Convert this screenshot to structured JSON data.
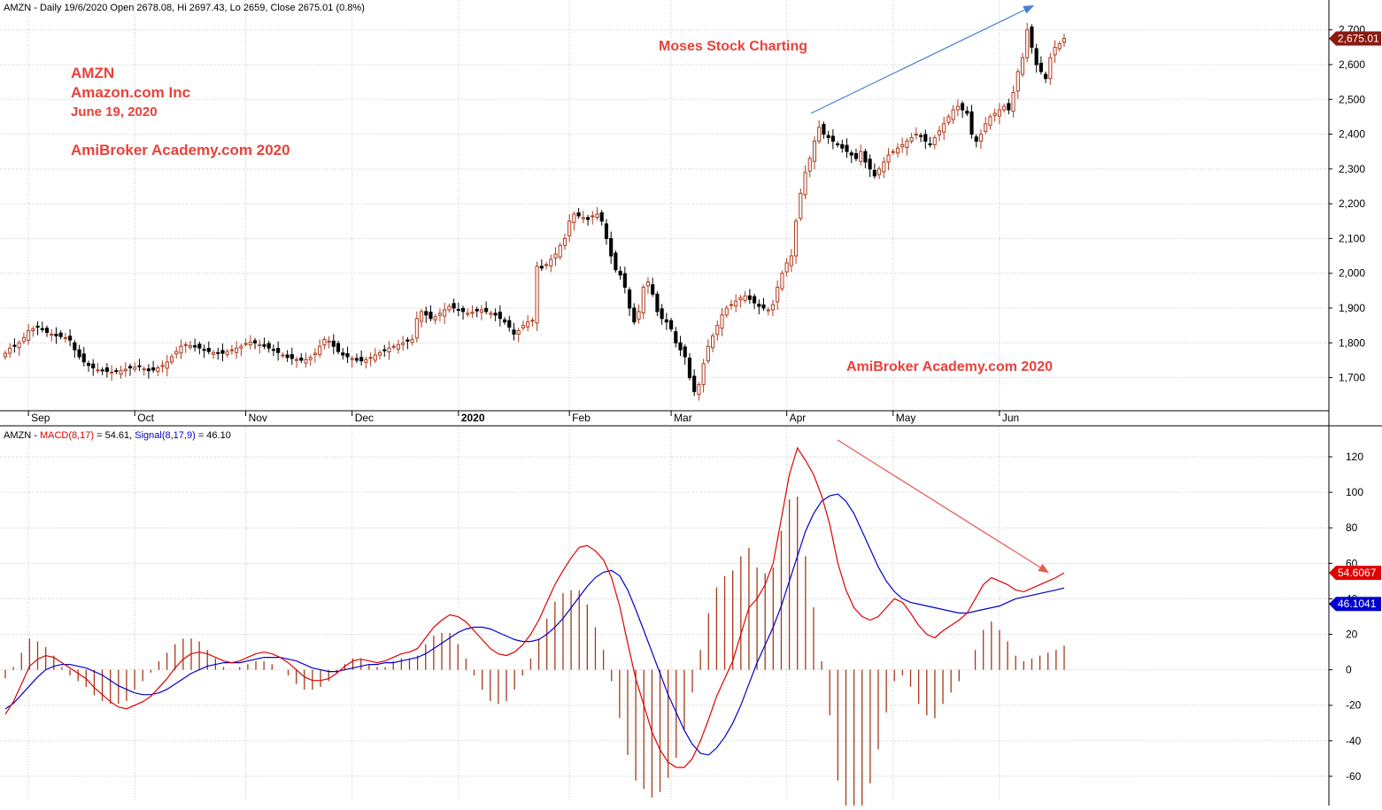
{
  "header": {
    "price_info": "AMZN - Daily 19/6/2020 Open 2678.08, Hi 2697.43, Lo 2659, Close 2675.01 (0.8%)",
    "macd_prefix": "AMZN - ",
    "macd_label": "MACD(8,17)",
    "macd_value_text": " = 54.61, ",
    "signal_label": "Signal(8,17,9)",
    "signal_value_text": " = 46.10"
  },
  "annotations": {
    "ticker": "AMZN",
    "company": "Amazon.com Inc",
    "date": "June 19, 2020",
    "site_left": "AmiBroker Academy.com 2020",
    "site_top": "Moses Stock Charting",
    "site_bottom": "AmiBroker Academy.com  2020"
  },
  "colors": {
    "up_candle": "#b03a1c",
    "down_candle": "#000000",
    "macd_line": "#e00000",
    "signal_line": "#0000cc",
    "histogram": "#a33a1a",
    "price_tag": "#8b1a10",
    "trend_up_arrow": "#4a7fd0",
    "trend_down_arrow": "#e85a50",
    "annotation_text": "#e8413a"
  },
  "chart_data": [
    {
      "type": "candlestick",
      "title": "AMZN - Daily 19/6/2020",
      "ylim": [
        1620,
        2740
      ],
      "y_ticks": [
        "1,700",
        "1,800",
        "1,900",
        "2,000",
        "2,100",
        "2,200",
        "2,300",
        "2,400",
        "2,500",
        "2,600",
        "2,700"
      ],
      "y_tick_values": [
        1700,
        1800,
        1900,
        2000,
        2100,
        2200,
        2300,
        2400,
        2500,
        2600,
        2700
      ],
      "x_labels": [
        "Sep",
        "Oct",
        "Nov",
        "Dec",
        "2020",
        "Feb",
        "Mar",
        "Apr",
        "May",
        "Jun"
      ],
      "x_label_bar_index": [
        5,
        28,
        52,
        75,
        98,
        122,
        144,
        169,
        192,
        215
      ],
      "last_close_label": "2,675.01",
      "last_close": 2675.01,
      "close_path": [
        1770,
        1785,
        1790,
        1800,
        1815,
        1835,
        1840,
        1845,
        1838,
        1830,
        1825,
        1820,
        1818,
        1815,
        1808,
        1780,
        1760,
        1745,
        1735,
        1728,
        1722,
        1720,
        1718,
        1716,
        1718,
        1720,
        1724,
        1728,
        1730,
        1732,
        1725,
        1720,
        1722,
        1728,
        1735,
        1745,
        1760,
        1775,
        1790,
        1795,
        1792,
        1788,
        1785,
        1780,
        1775,
        1772,
        1770,
        1770,
        1775,
        1780,
        1785,
        1790,
        1798,
        1802,
        1800,
        1795,
        1790,
        1785,
        1780,
        1772,
        1765,
        1758,
        1755,
        1752,
        1750,
        1752,
        1758,
        1770,
        1790,
        1810,
        1805,
        1790,
        1775,
        1765,
        1760,
        1755,
        1750,
        1748,
        1752,
        1758,
        1765,
        1772,
        1778,
        1785,
        1790,
        1795,
        1800,
        1805,
        1810,
        1870,
        1890,
        1880,
        1870,
        1875,
        1885,
        1895,
        1905,
        1900,
        1895,
        1890,
        1885,
        1888,
        1892,
        1895,
        1890,
        1885,
        1880,
        1870,
        1860,
        1845,
        1825,
        1835,
        1850,
        1860,
        1865,
        2020,
        2015,
        2025,
        2040,
        2055,
        2080,
        2100,
        2150,
        2170,
        2165,
        2160,
        2155,
        2165,
        2170,
        2150,
        2100,
        2050,
        2010,
        1995,
        1960,
        1900,
        1860,
        1890,
        1960,
        1975,
        1940,
        1890,
        1870,
        1860,
        1840,
        1800,
        1780,
        1760,
        1700,
        1660,
        1680,
        1740,
        1790,
        1820,
        1850,
        1880,
        1900,
        1910,
        1920,
        1930,
        1935,
        1925,
        1915,
        1905,
        1900,
        1895,
        1910,
        1960,
        2000,
        2030,
        2050,
        2150,
        2230,
        2290,
        2330,
        2380,
        2420,
        2400,
        2390,
        2380,
        2370,
        2360,
        2350,
        2340,
        2330,
        2350,
        2320,
        2300,
        2280,
        2300,
        2320,
        2340,
        2350,
        2360,
        2370,
        2380,
        2390,
        2400,
        2395,
        2380,
        2370,
        2390,
        2410,
        2430,
        2450,
        2470,
        2480,
        2470,
        2460,
        2400,
        2380,
        2400,
        2430,
        2450,
        2460,
        2470,
        2480,
        2470,
        2520,
        2580,
        2620,
        2700,
        2650,
        2600,
        2580,
        2560,
        2620,
        2650,
        2660,
        2675
      ]
    },
    {
      "type": "line",
      "title": "AMZN - MACD(8,17) = 54.61, Signal(8,17,9) = 46.10",
      "ylim": [
        -74,
        128
      ],
      "y_ticks": [
        "-60",
        "-40",
        "-20",
        "0",
        "20",
        "40",
        "60",
        "80",
        "100",
        "120"
      ],
      "y_tick_values": [
        -60,
        -40,
        -20,
        0,
        20,
        40,
        60,
        80,
        100,
        120
      ],
      "last_values": {
        "macd": "54.6067",
        "signal": "46.1041"
      },
      "series": [
        {
          "name": "MACD(8,17)",
          "values": [
            -25,
            -18,
            -8,
            2,
            6,
            8,
            7,
            4,
            1,
            -2,
            -5,
            -10,
            -14,
            -18,
            -21,
            -22,
            -20,
            -18,
            -15,
            -10,
            -5,
            1,
            6,
            9,
            10,
            9,
            7,
            5,
            4,
            5,
            7,
            9,
            10,
            9,
            7,
            4,
            0,
            -4,
            -6,
            -6,
            -5,
            -2,
            2,
            5,
            6,
            5,
            4,
            5,
            7,
            9,
            10,
            12,
            18,
            24,
            28,
            31,
            30,
            27,
            22,
            17,
            12,
            9,
            8,
            10,
            14,
            20,
            28,
            38,
            48,
            56,
            63,
            69,
            70,
            67,
            62,
            52,
            36,
            15,
            -5,
            -20,
            -35,
            -45,
            -52,
            -55,
            -55,
            -50,
            -40,
            -28,
            -15,
            -5,
            5,
            20,
            35,
            40,
            48,
            60,
            85,
            110,
            125,
            118,
            110,
            98,
            82,
            60,
            45,
            35,
            30,
            28,
            30,
            35,
            40,
            38,
            32,
            25,
            20,
            18,
            22,
            25,
            28,
            32,
            40,
            48,
            52,
            50,
            48,
            45,
            44,
            46,
            48,
            50,
            52,
            54.61
          ]
        },
        {
          "name": "Signal(8,17,9)",
          "values": [
            -22,
            -19,
            -14,
            -9,
            -4,
            0,
            2,
            3,
            3,
            2,
            1,
            -1,
            -3,
            -6,
            -9,
            -11,
            -13,
            -14,
            -14,
            -13,
            -11,
            -8,
            -5,
            -2,
            0,
            2,
            3,
            4,
            4,
            4,
            5,
            6,
            7,
            7,
            7,
            6,
            5,
            3,
            1,
            0,
            -1,
            -1,
            0,
            1,
            2,
            3,
            3,
            4,
            4,
            5,
            6,
            7,
            9,
            12,
            15,
            18,
            21,
            23,
            24,
            24,
            23,
            21,
            19,
            17,
            16,
            16,
            17,
            20,
            24,
            29,
            35,
            41,
            47,
            52,
            55,
            56,
            53,
            45,
            34,
            22,
            10,
            -2,
            -14,
            -24,
            -34,
            -42,
            -47,
            -48,
            -44,
            -38,
            -30,
            -20,
            -8,
            4,
            14,
            24,
            36,
            50,
            64,
            78,
            88,
            95,
            98,
            99,
            95,
            88,
            78,
            68,
            58,
            50,
            44,
            40,
            38,
            37,
            36,
            35,
            34,
            33,
            32,
            32,
            33,
            34,
            35,
            36,
            38,
            40,
            41,
            42,
            43,
            44,
            45,
            46.1
          ]
        }
      ]
    }
  ]
}
